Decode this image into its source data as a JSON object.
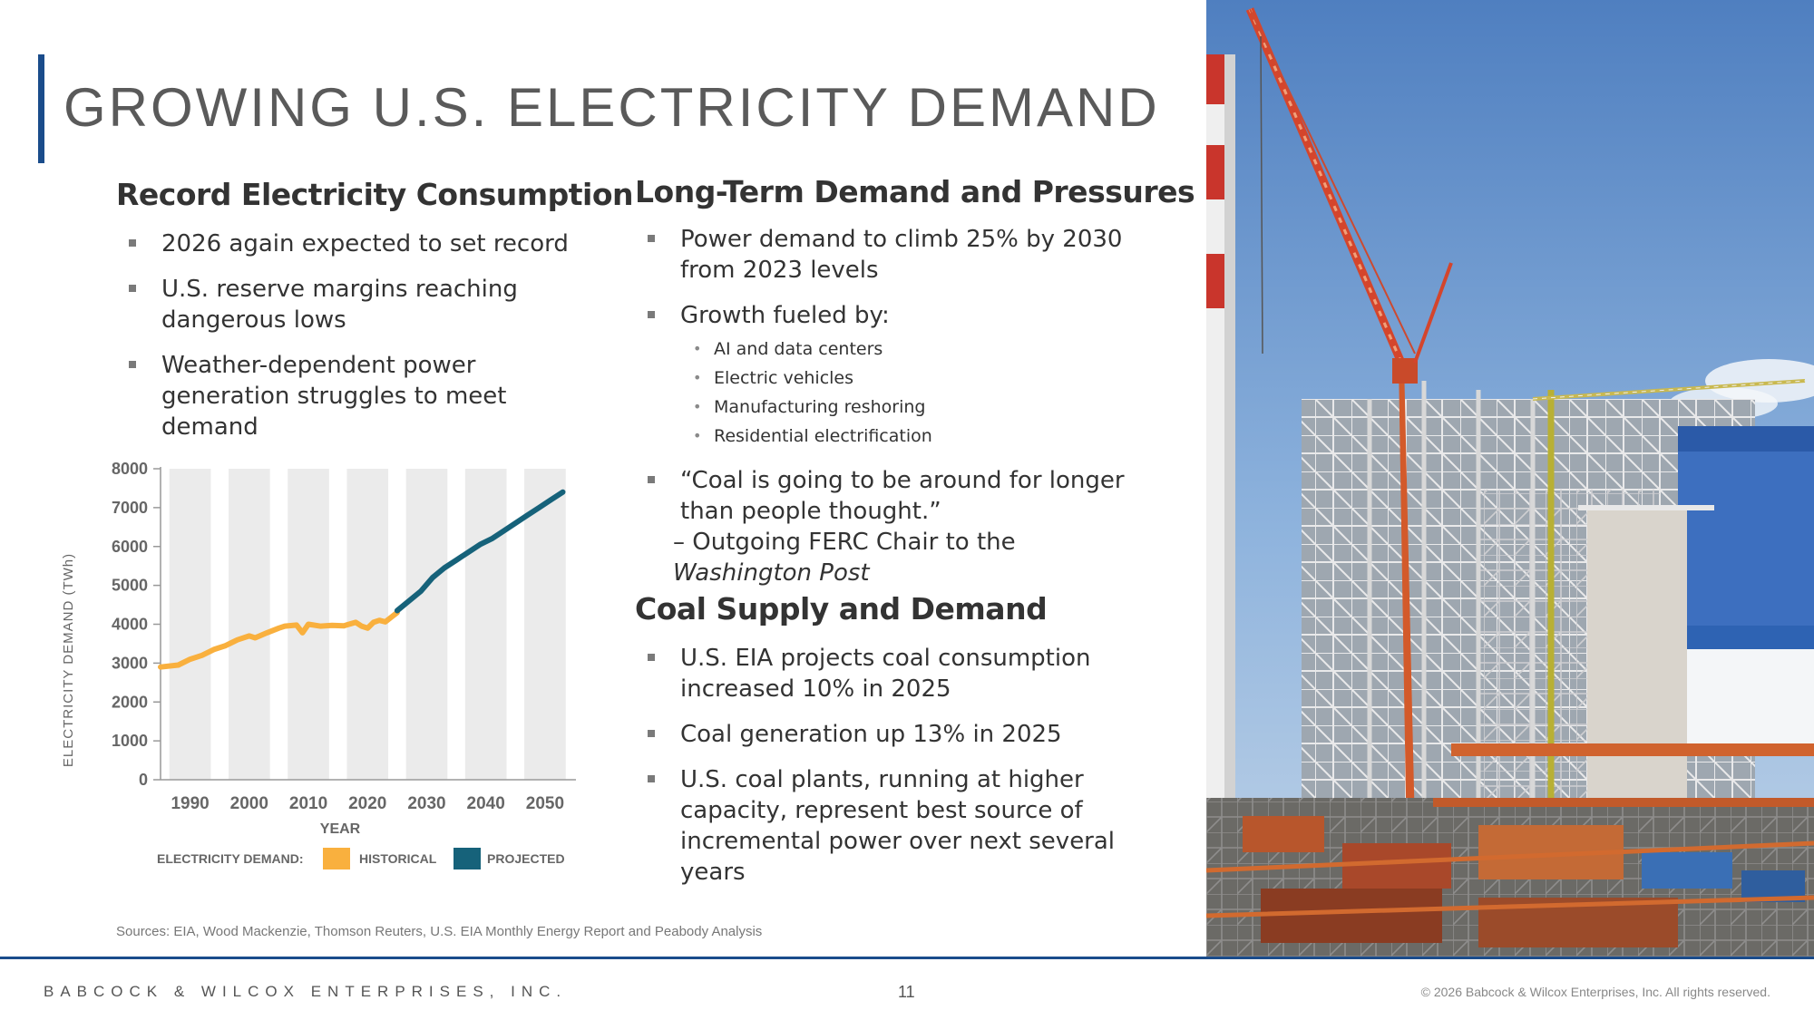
{
  "slide": {
    "title": "GROWING U.S. ELECTRICITY DEMAND",
    "page_number": "11",
    "company": "BABCOCK & WILCOX ENTERPRISES, INC.",
    "copyright": "© 2026 Babcock & Wilcox Enterprises, Inc. All rights reserved.",
    "sources": "Sources: EIA, Wood Mackenzie, Thomson Reuters, U.S. EIA Monthly Energy Report and Peabody Analysis"
  },
  "left": {
    "heading": "Record Electricity Consumption",
    "bullets": [
      "2026 again expected to set record",
      "U.S. reserve margins reaching dangerous lows",
      "Weather-dependent power generation struggles to meet demand"
    ]
  },
  "right": {
    "section1": {
      "heading": "Long-Term Demand and Pressures",
      "bullet1": "Power demand to climb 25% by 2030 from 2023 levels",
      "bullet2": "Growth fueled by:",
      "sub_bullets": [
        "AI and data centers",
        "Electric vehicles",
        "Manufacturing reshoring",
        "Residential electrification"
      ],
      "quote": "“Coal is going to be around for longer than people thought.”",
      "attribution_prefix": "– Outgoing FERC Chair to the ",
      "attribution_source": "Washington Post"
    },
    "section2": {
      "heading": "Coal Supply and Demand",
      "bullets": [
        "U.S. EIA projects coal consumption increased 10% in 2025",
        "Coal generation up 13% in 2025",
        "U.S. coal plants, running at higher capacity, represent best source of incremental power over next several years"
      ]
    }
  },
  "chart_data": {
    "type": "line",
    "xlabel": "YEAR",
    "ylabel": "ELECTRICITY DEMAND (TWh)",
    "ylim": [
      0,
      8000
    ],
    "xlim": [
      1985,
      2054
    ],
    "y_ticks": [
      0,
      1000,
      2000,
      3000,
      4000,
      5000,
      6000,
      7000,
      8000
    ],
    "x_ticks": [
      1990,
      2000,
      2010,
      2020,
      2030,
      2040,
      2050
    ],
    "legend": {
      "title": "ELECTRICITY DEMAND:",
      "position": "bottom"
    },
    "series": [
      {
        "name": "HISTORICAL",
        "color": "#f9b03e",
        "x": [
          1985,
          1988,
          1990,
          1992,
          1994,
          1996,
          1998,
          2000,
          2001,
          2003,
          2005,
          2006,
          2008,
          2009,
          2010,
          2012,
          2014,
          2016,
          2018,
          2019,
          2020,
          2021,
          2022,
          2023,
          2024,
          2025
        ],
        "y": [
          2900,
          2950,
          3100,
          3200,
          3350,
          3450,
          3600,
          3700,
          3650,
          3780,
          3900,
          3950,
          3980,
          3780,
          4000,
          3950,
          3970,
          3960,
          4050,
          3950,
          3900,
          4050,
          4100,
          4060,
          4180,
          4300
        ]
      },
      {
        "name": "PROJECTED",
        "color": "#16627a",
        "x": [
          2025,
          2027,
          2029,
          2031,
          2033,
          2035,
          2037,
          2039,
          2041,
          2043,
          2045,
          2047,
          2049,
          2051,
          2053
        ],
        "y": [
          4350,
          4600,
          4850,
          5200,
          5450,
          5650,
          5850,
          6050,
          6200,
          6400,
          6600,
          6800,
          7000,
          7200,
          7400
        ]
      }
    ]
  }
}
